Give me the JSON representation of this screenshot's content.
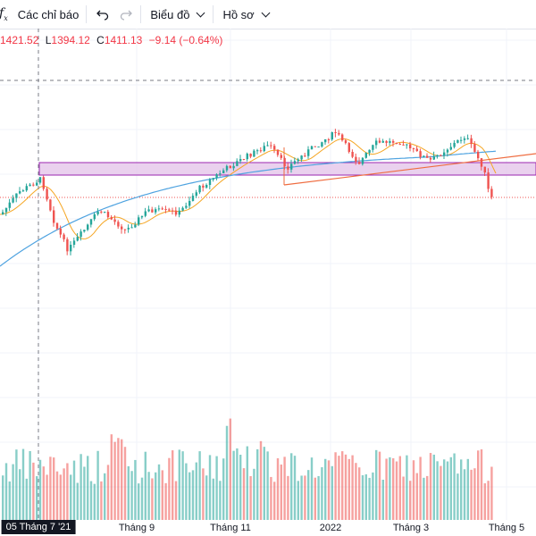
{
  "toolbar": {
    "indicators_label": "Các chỉ báo",
    "indicators_icon": "function-fx-icon",
    "undo_icon": "undo-icon",
    "redo_icon": "redo-icon",
    "chart_label": "Biểu đồ",
    "profile_label": "Hồ sơ"
  },
  "legend": {
    "high": "1421.52",
    "low_label": "L",
    "low": "1394.12",
    "close_label": "C",
    "close": "1411.13",
    "change": "−9.14 (−0.64%)"
  },
  "crosshair_label": "05 Tháng 7 '21",
  "colors": {
    "up": "#26a69a",
    "down": "#ef5350",
    "ma_fast": "#f5a623",
    "ma_slow": "#4fa3e0",
    "zone_fill": "#e1bee7",
    "zone_border": "#9c27b0",
    "trendline": "#ef6c3f"
  },
  "chart_data": {
    "type": "candlestick",
    "x_ticks": [
      "05 Tháng 7 '21",
      "Tháng 9",
      "Tháng 11",
      "2022",
      "Tháng 3",
      "Tháng 5"
    ],
    "last_close": 1411.13,
    "volume_series": "bars colored by candle direction"
  }
}
